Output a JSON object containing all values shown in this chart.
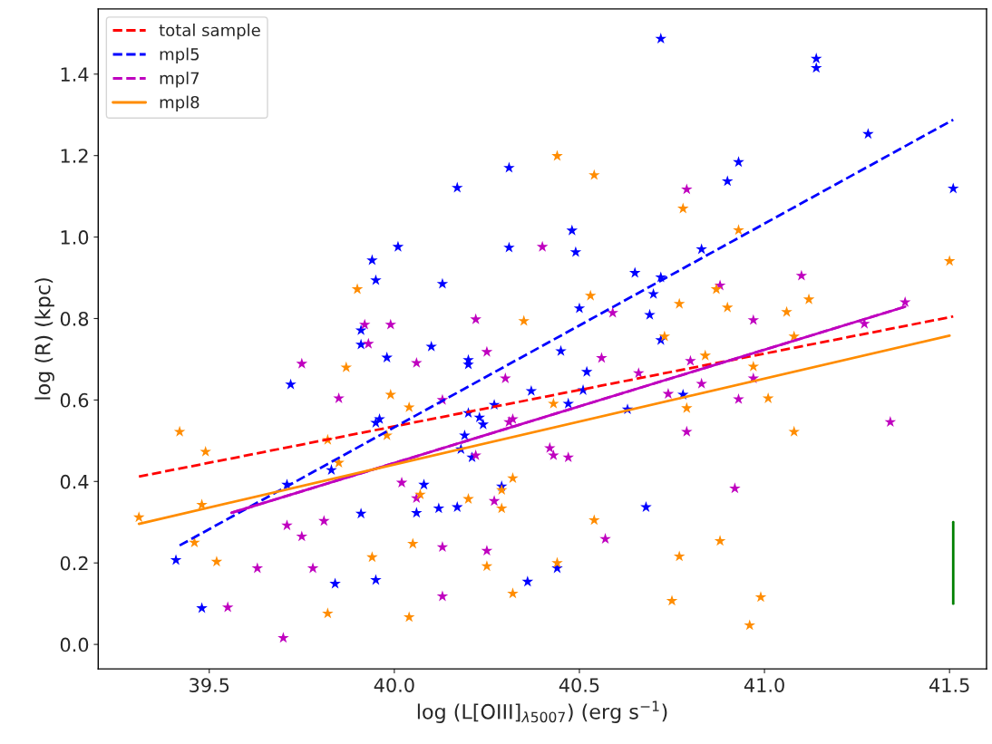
{
  "chart_data": {
    "type": "scatter",
    "xlabel": "log (L[OIII]$_{λ5007}$) (erg s$^{−1}$)",
    "ylabel": "log (R) (kpc)",
    "xlim": [
      39.2,
      41.6
    ],
    "ylim": [
      -0.06,
      1.56
    ],
    "xticks": [
      39.5,
      {
        "value": 40,
        "label": "40.0"
      },
      40.5,
      {
        "value": 41,
        "label": "41.0"
      },
      41.5
    ],
    "yticks": [
      {
        "value": 0,
        "label": "0.0"
      },
      {
        "value": 0.2,
        "label": "0.2"
      },
      {
        "value": 0.4,
        "label": "0.4"
      },
      {
        "value": 0.6,
        "label": "0.6"
      },
      {
        "value": 0.8,
        "label": "0.8"
      },
      {
        "value": 1.0,
        "label": "1.0"
      },
      {
        "value": 1.2,
        "label": "1.2"
      },
      {
        "value": 1.4,
        "label": "1.4"
      }
    ],
    "grid": false,
    "legend": "top left",
    "series": [
      {
        "marker": "star",
        "color": "#0000ff",
        "x": [
          40.72,
          40.31,
          40.17,
          40.48,
          40.01,
          40.31,
          40.49,
          40.13,
          40.65,
          40.72,
          40.7,
          40.5,
          40.69,
          40.72,
          41.14,
          41.14,
          41.28,
          40.93,
          40.9,
          41.51,
          40.83,
          39.94,
          39.95,
          39.91,
          40.1,
          39.98,
          40.2,
          40.2,
          40.45,
          40.52,
          40.37,
          40.51,
          40.47,
          40.27,
          40.2,
          40.23,
          40.24,
          40.63,
          40.78,
          40.19,
          40.18,
          40.21,
          40.08,
          40.06,
          40.12,
          40.17,
          40.29,
          40.68,
          40.44,
          40.36,
          39.91,
          39.72,
          39.95,
          39.96,
          39.83,
          39.71,
          39.91,
          39.41,
          39.84,
          39.95,
          39.48
        ],
        "values": [
          1.487,
          1.17,
          1.121,
          1.016,
          0.976,
          0.974,
          0.963,
          0.885,
          0.912,
          0.901,
          0.86,
          0.825,
          0.809,
          0.747,
          1.438,
          1.415,
          1.253,
          1.184,
          1.137,
          1.119,
          0.97,
          0.943,
          0.894,
          0.771,
          0.731,
          0.704,
          0.698,
          0.687,
          0.72,
          0.669,
          0.622,
          0.624,
          0.591,
          0.588,
          0.568,
          0.557,
          0.54,
          0.577,
          0.613,
          0.513,
          0.479,
          0.459,
          0.392,
          0.323,
          0.334,
          0.337,
          0.388,
          0.337,
          0.187,
          0.154,
          0.736,
          0.638,
          0.544,
          0.553,
          0.428,
          0.392,
          0.321,
          0.207,
          0.149,
          0.158,
          0.089
        ]
      },
      {
        "marker": "star",
        "color": "#bf00bf",
        "x": [
          39.92,
          39.99,
          40.4,
          40.79,
          40.59,
          40.22,
          40.88,
          41.1,
          40.97,
          41.38,
          41.27,
          40.8,
          40.97,
          40.83,
          40.93,
          40.79,
          41.34,
          40.92,
          40.06,
          40.25,
          40.56,
          40.3,
          40.66,
          40.13,
          40.31,
          40.32,
          40.74,
          40.22,
          40.42,
          40.43,
          40.47,
          40.02,
          40.06,
          40.27,
          40.57,
          40.13,
          40.25,
          40.13,
          39.93,
          39.75,
          39.85,
          39.71,
          39.81,
          39.75,
          39.63,
          39.78,
          39.55,
          39.7
        ],
        "values": [
          0.785,
          0.785,
          0.976,
          1.117,
          0.814,
          0.798,
          0.881,
          0.905,
          0.796,
          0.84,
          0.787,
          0.696,
          0.653,
          0.64,
          0.602,
          0.522,
          0.546,
          0.383,
          0.691,
          0.718,
          0.703,
          0.653,
          0.666,
          0.6,
          0.546,
          0.553,
          0.615,
          0.464,
          0.482,
          0.464,
          0.459,
          0.397,
          0.359,
          0.352,
          0.259,
          0.239,
          0.23,
          0.118,
          0.738,
          0.689,
          0.604,
          0.292,
          0.303,
          0.265,
          0.187,
          0.187,
          0.091,
          0.016
        ]
      },
      {
        "marker": "star",
        "color": "#ff8c00",
        "x": [
          39.9,
          40.44,
          40.54,
          40.78,
          40.53,
          40.77,
          40.35,
          40.73,
          40.93,
          41.5,
          40.87,
          40.9,
          41.12,
          41.06,
          41.08,
          40.84,
          40.97,
          41.01,
          40.79,
          41.08,
          40.88,
          40.99,
          40.96,
          39.99,
          40.04,
          40.43,
          39.98,
          40.07,
          40.2,
          40.29,
          40.29,
          40.32,
          40.54,
          40.05,
          40.25,
          40.77,
          40.44,
          40.32,
          40.75,
          40.04,
          39.87,
          39.42,
          39.49,
          39.82,
          39.85,
          39.48,
          39.31,
          39.46,
          39.52,
          39.94,
          39.82
        ],
        "values": [
          0.872,
          1.199,
          1.152,
          1.07,
          0.856,
          0.836,
          0.794,
          0.756,
          1.017,
          0.941,
          0.872,
          0.827,
          0.847,
          0.816,
          0.756,
          0.709,
          0.682,
          0.604,
          0.58,
          0.522,
          0.254,
          0.116,
          0.047,
          0.613,
          0.582,
          0.591,
          0.513,
          0.368,
          0.357,
          0.379,
          0.334,
          0.408,
          0.305,
          0.247,
          0.192,
          0.216,
          0.2,
          0.125,
          0.107,
          0.067,
          0.68,
          0.522,
          0.473,
          0.502,
          0.446,
          0.343,
          0.312,
          0.25,
          0.203,
          0.214,
          0.076
        ]
      },
      {
        "type": "line",
        "name": "total sample",
        "color": "#ff0000",
        "line_style": "dashed",
        "x": [
          39.31,
          41.51
        ],
        "values": [
          0.412,
          0.805
        ]
      },
      {
        "type": "line",
        "name": "mpl5",
        "color": "#0000ff",
        "line_style": "dashed",
        "x": [
          39.42,
          41.51
        ],
        "values": [
          0.243,
          1.288
        ]
      },
      {
        "type": "line",
        "name": "mpl7",
        "color": "#bf00bf",
        "line_style": "dashed",
        "x": [
          39.56,
          41.38
        ],
        "values": [
          0.323,
          0.829
        ]
      },
      {
        "type": "line",
        "color": "#bf00bf",
        "line_style": "solid",
        "x": [
          39.56,
          41.38
        ],
        "values": [
          0.323,
          0.829
        ]
      },
      {
        "type": "line",
        "name": "mpl8",
        "color": "#ff8c00",
        "line_style": "solid",
        "x": [
          39.31,
          41.5
        ],
        "values": [
          0.296,
          0.758
        ]
      },
      {
        "type": "line",
        "color": "#008000",
        "line_style": "solid",
        "x": [
          41.51,
          41.51
        ],
        "values": [
          0.1,
          0.3
        ]
      }
    ]
  }
}
